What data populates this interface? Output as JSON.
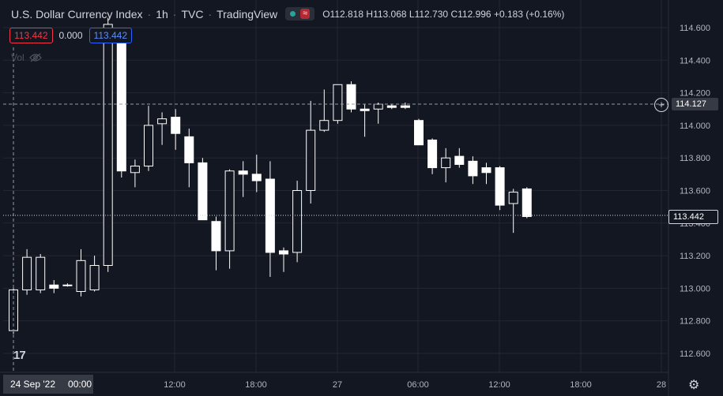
{
  "header": {
    "symbol": "U.S. Dollar Currency Index",
    "interval": "1h",
    "exchange": "TVC",
    "source": "TradingView",
    "separator": "·",
    "market_status": "open",
    "status_icon": "wave-icon",
    "ohlc": {
      "open_label": "O",
      "open": "112.818",
      "high_label": "H",
      "high": "113.068",
      "low_label": "L",
      "low": "112.730",
      "close_label": "C",
      "close": "112.996",
      "change": "+0.183 (+0.16%)"
    }
  },
  "badges": {
    "sell": "113.442",
    "spread": "0.000",
    "buy": "113.442"
  },
  "volume": {
    "label": "Vol",
    "icon": "eye-off-icon"
  },
  "crosshair_price": "114.127",
  "last_price": "113.442",
  "date_label": {
    "date": "24 Sep '22",
    "time": "00:00"
  },
  "colors": {
    "background": "#131722",
    "grid": "#2a2e39",
    "candle_up": "#131722",
    "candle_down": "#ffffff",
    "text": "#d1d4dc",
    "axis_text": "#b2b5be"
  },
  "chart_data": {
    "type": "candlestick",
    "title": "",
    "ylim": [
      112.5,
      114.7
    ],
    "y_ticks": [
      "114.600",
      "114.400",
      "114.200",
      "114.000",
      "113.800",
      "113.600",
      "113.400",
      "113.200",
      "113.000",
      "112.800",
      "112.600"
    ],
    "x_ticks": [
      "12:00",
      "18:00",
      "27",
      "06:00",
      "12:00",
      "18:00",
      "28"
    ],
    "grid": true,
    "candles": [
      {
        "o": 112.74,
        "h": 113.0,
        "l": 112.72,
        "c": 112.99
      },
      {
        "o": 112.99,
        "h": 113.24,
        "l": 112.96,
        "c": 113.19
      },
      {
        "o": 112.99,
        "h": 113.21,
        "l": 112.97,
        "c": 113.19
      },
      {
        "o": 113.02,
        "h": 113.05,
        "l": 112.97,
        "c": 113.0
      },
      {
        "o": 113.02,
        "h": 113.03,
        "l": 113.01,
        "c": 113.02
      },
      {
        "o": 112.98,
        "h": 113.24,
        "l": 112.95,
        "c": 113.17
      },
      {
        "o": 112.99,
        "h": 113.2,
        "l": 112.98,
        "c": 113.14
      },
      {
        "o": 113.14,
        "h": 114.66,
        "l": 113.1,
        "c": 114.62
      },
      {
        "o": 114.53,
        "h": 114.6,
        "l": 113.68,
        "c": 113.72
      },
      {
        "o": 113.71,
        "h": 113.79,
        "l": 113.62,
        "c": 113.75
      },
      {
        "o": 113.75,
        "h": 114.12,
        "l": 113.72,
        "c": 114.0
      },
      {
        "o": 114.01,
        "h": 114.08,
        "l": 113.88,
        "c": 114.04
      },
      {
        "o": 114.05,
        "h": 114.1,
        "l": 113.85,
        "c": 113.95
      },
      {
        "o": 113.93,
        "h": 113.98,
        "l": 113.62,
        "c": 113.77
      },
      {
        "o": 113.77,
        "h": 113.8,
        "l": 113.42,
        "c": 113.42
      },
      {
        "o": 113.41,
        "h": 113.44,
        "l": 113.11,
        "c": 113.23
      },
      {
        "o": 113.23,
        "h": 113.73,
        "l": 113.12,
        "c": 113.72
      },
      {
        "o": 113.72,
        "h": 113.78,
        "l": 113.56,
        "c": 113.7
      },
      {
        "o": 113.7,
        "h": 113.82,
        "l": 113.59,
        "c": 113.66
      },
      {
        "o": 113.67,
        "h": 113.78,
        "l": 113.07,
        "c": 113.22
      },
      {
        "o": 113.23,
        "h": 113.25,
        "l": 113.1,
        "c": 113.21
      },
      {
        "o": 113.22,
        "h": 113.66,
        "l": 113.16,
        "c": 113.6
      },
      {
        "o": 113.6,
        "h": 114.15,
        "l": 113.52,
        "c": 113.97
      },
      {
        "o": 113.97,
        "h": 114.22,
        "l": 113.96,
        "c": 114.03
      },
      {
        "o": 114.03,
        "h": 114.25,
        "l": 114.01,
        "c": 114.25
      },
      {
        "o": 114.25,
        "h": 114.27,
        "l": 114.08,
        "c": 114.1
      },
      {
        "o": 114.1,
        "h": 114.13,
        "l": 113.93,
        "c": 114.09
      },
      {
        "o": 114.1,
        "h": 114.14,
        "l": 114.01,
        "c": 114.13
      },
      {
        "o": 114.12,
        "h": 114.13,
        "l": 114.1,
        "c": 114.11
      },
      {
        "o": 114.12,
        "h": 114.14,
        "l": 114.1,
        "c": 114.11
      },
      {
        "o": 114.03,
        "h": 114.04,
        "l": 113.88,
        "c": 113.88
      },
      {
        "o": 113.91,
        "h": 113.92,
        "l": 113.7,
        "c": 113.74
      },
      {
        "o": 113.74,
        "h": 113.86,
        "l": 113.65,
        "c": 113.8
      },
      {
        "o": 113.81,
        "h": 113.86,
        "l": 113.74,
        "c": 113.76
      },
      {
        "o": 113.78,
        "h": 113.81,
        "l": 113.64,
        "c": 113.69
      },
      {
        "o": 113.74,
        "h": 113.77,
        "l": 113.64,
        "c": 113.71
      },
      {
        "o": 113.74,
        "h": 113.75,
        "l": 113.48,
        "c": 113.51
      },
      {
        "o": 113.52,
        "h": 113.61,
        "l": 113.34,
        "c": 113.59
      },
      {
        "o": 113.61,
        "h": 113.62,
        "l": 113.43,
        "c": 113.44
      }
    ]
  }
}
